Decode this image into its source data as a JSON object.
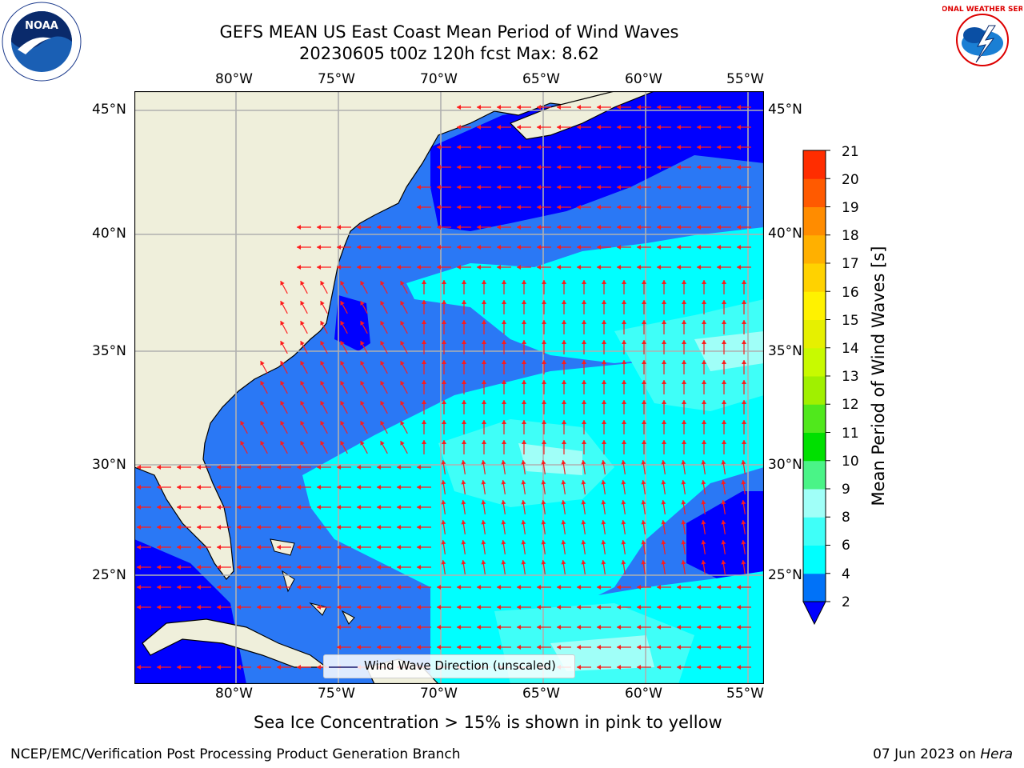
{
  "title": "GEFS MEAN US East Coast Mean Period of Wind Waves",
  "subtitle": "20230605 t00z 120h fcst   Max: 8.62",
  "logos": {
    "noaa_text": "NOAA",
    "nws_text": "NATIONAL WEATHER SERVICE"
  },
  "map": {
    "lon_labels": [
      "80°W",
      "75°W",
      "70°W",
      "65°W",
      "60°W",
      "55°W"
    ],
    "lat_labels": [
      "45°N",
      "40°N",
      "35°N",
      "30°N",
      "25°N"
    ],
    "legend_label": "Wind Wave Direction (unscaled)"
  },
  "colorbar": {
    "label": "Mean Period of Wind Waves [s]",
    "ticks": [
      "2",
      "4",
      "6",
      "8",
      "9",
      "10",
      "11",
      "12",
      "13",
      "14",
      "15",
      "16",
      "17",
      "18",
      "19",
      "20",
      "21"
    ],
    "colors": [
      "#0072f8",
      "#00ffff",
      "#3ffff8",
      "#a0fff8",
      "#4af487",
      "#00e000",
      "#50e81c",
      "#a0f000",
      "#c8fa00",
      "#e6f000",
      "#fff200",
      "#ffd200",
      "#ffb000",
      "#ff8c00",
      "#ff5a00",
      "#ff2d00",
      "#ff0000"
    ],
    "under_color": "#0000ff"
  },
  "caption": "Sea Ice Concentration > 15% is shown in pink to yellow",
  "footer": {
    "left": "NCEP/EMC/Verification Post Processing Product Generation Branch",
    "right_date": "07 Jun 2023 on ",
    "right_host": "Hera"
  }
}
